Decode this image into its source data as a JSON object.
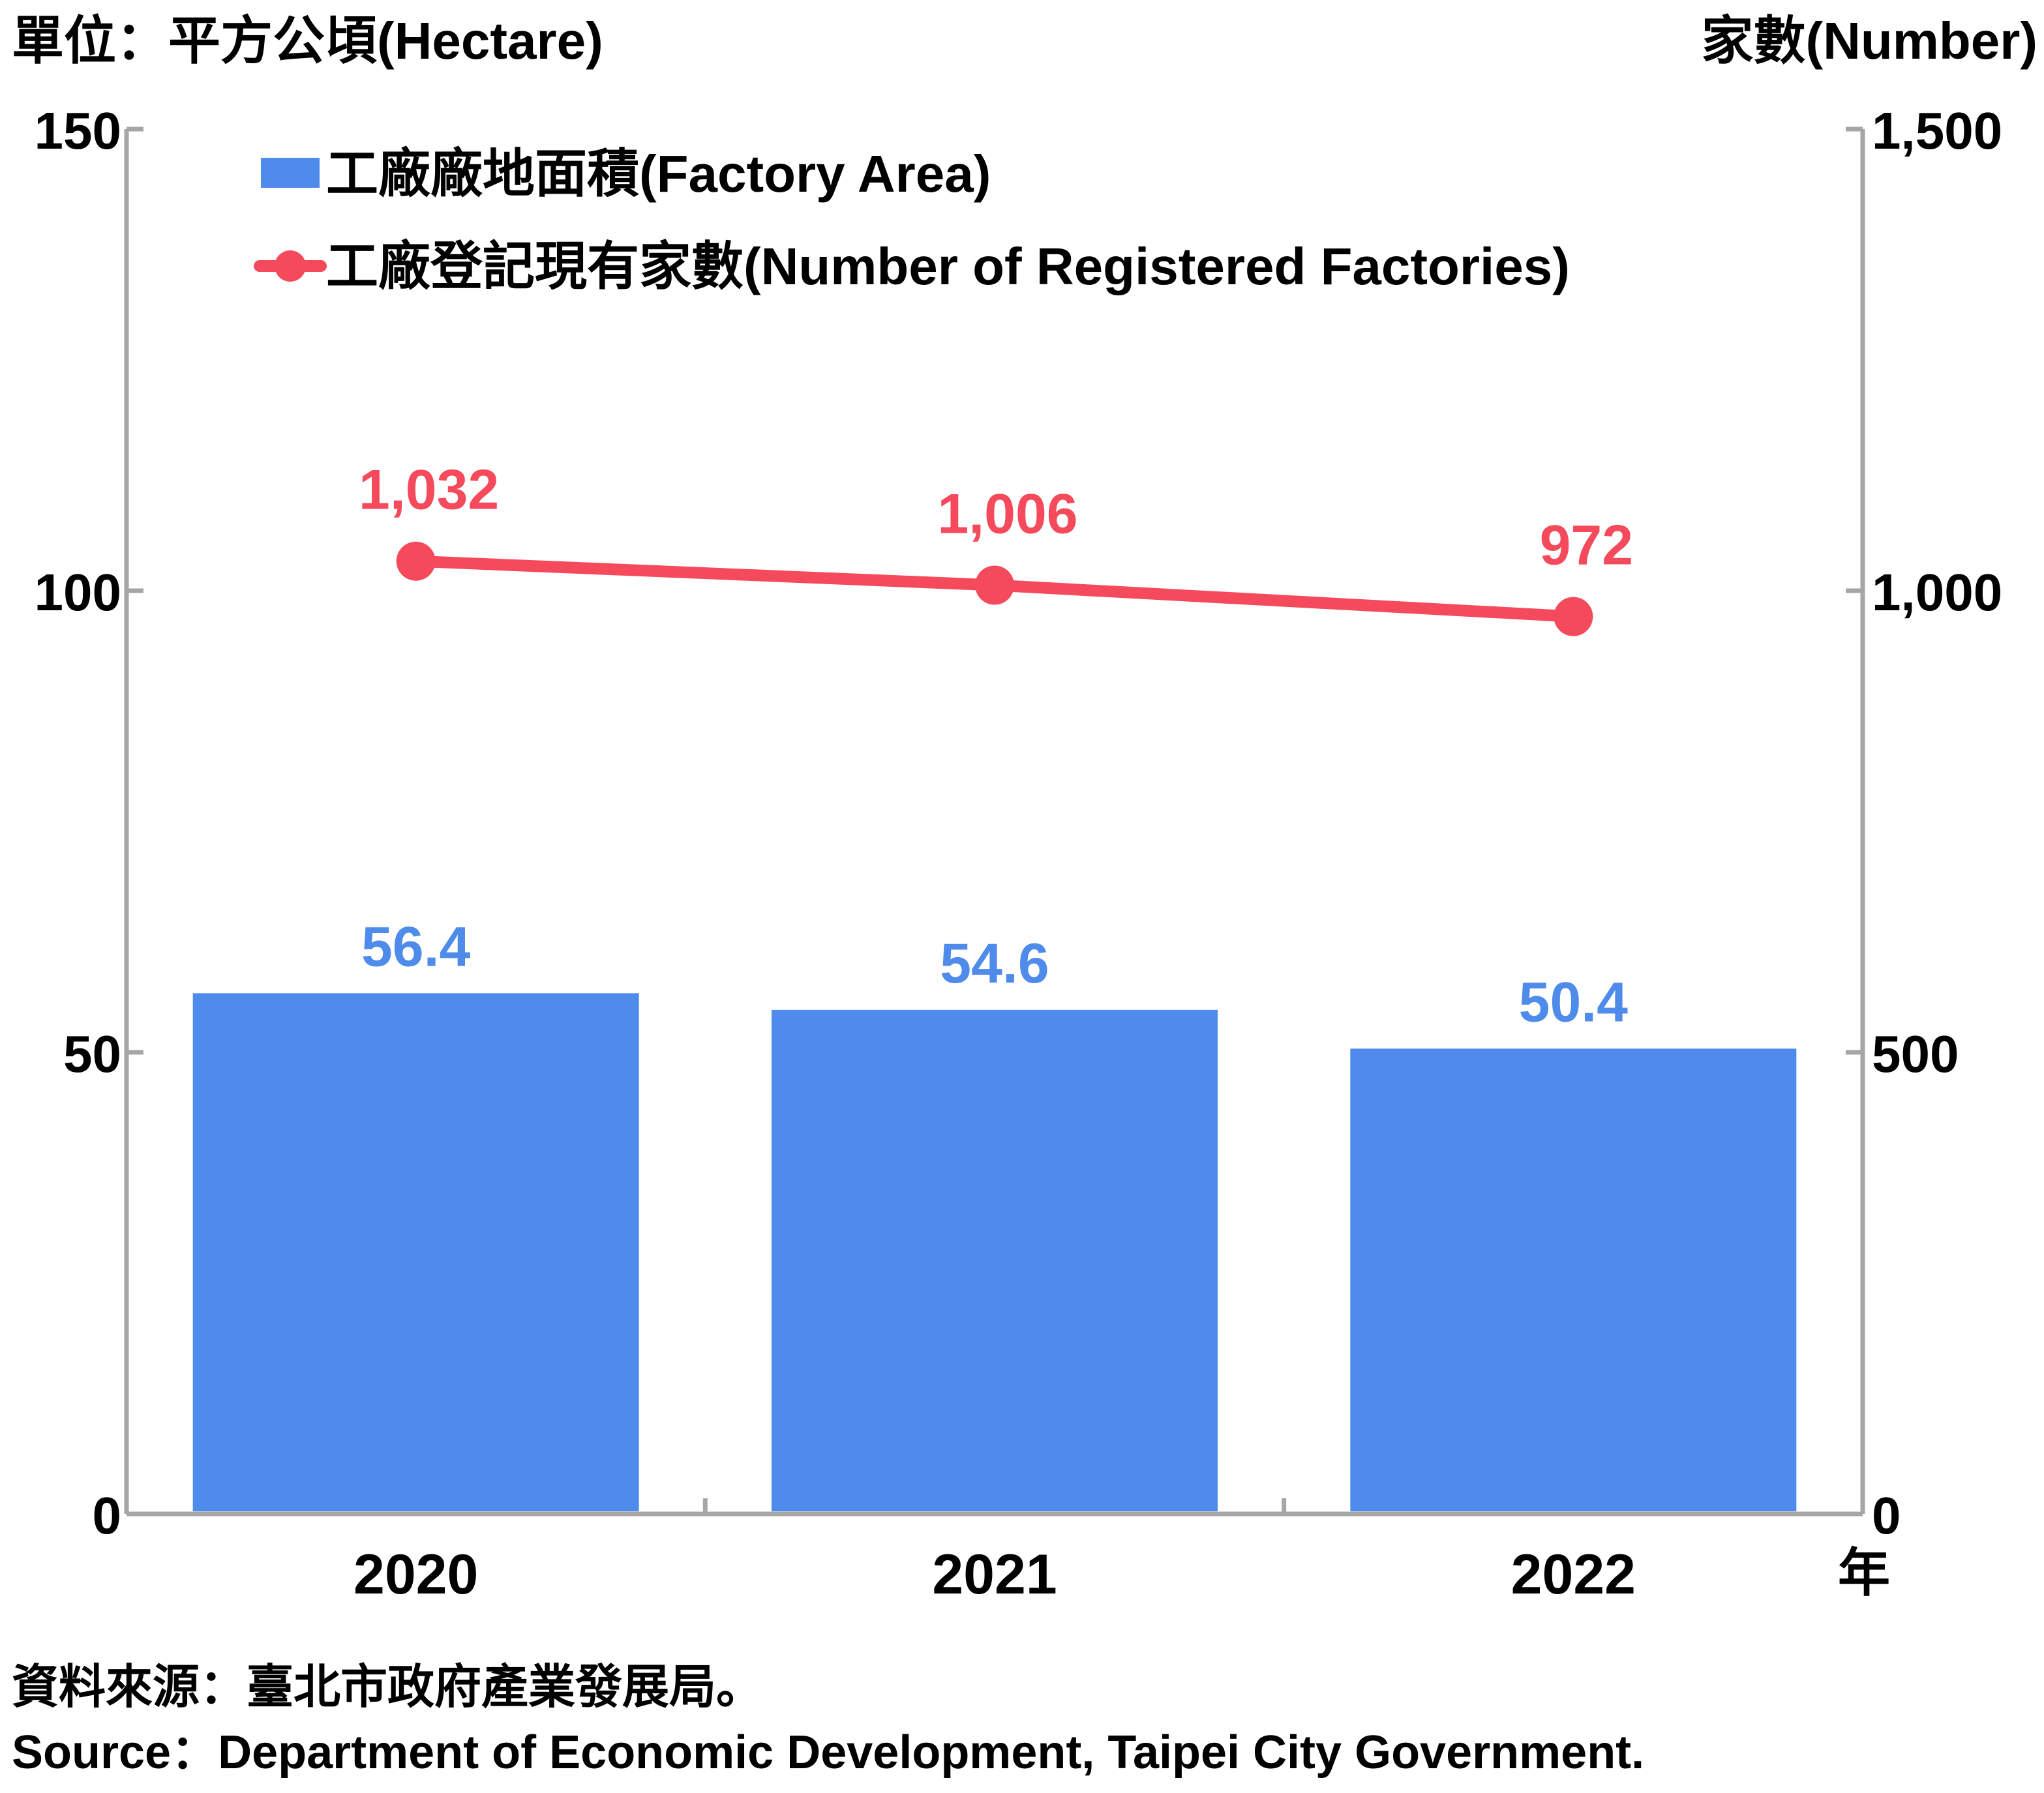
{
  "chart_data": {
    "type": "bar+line",
    "left_unit_label": "單位：平方公頃(Hectare)",
    "right_unit_label": "家數(Number)",
    "x_unit_label": "年",
    "categories": [
      "2020",
      "2021",
      "2022"
    ],
    "left_axis": {
      "range": [
        0,
        150
      ],
      "ticks": [
        "0",
        "50",
        "100",
        "150"
      ]
    },
    "right_axis": {
      "range": [
        0,
        1500
      ],
      "ticks": [
        "0",
        "500",
        "1,000",
        "1,500"
      ]
    },
    "series": [
      {
        "name": "工廠廠地面積(Factory Area)",
        "type": "bar",
        "axis": "left",
        "values": [
          56.4,
          54.6,
          50.4
        ],
        "labels": [
          "56.4",
          "54.6",
          "50.4"
        ],
        "color": "#4E8BEA"
      },
      {
        "name": "工廠登記現有家數(Number of Registered Factories)",
        "type": "line",
        "axis": "right",
        "values": [
          1032,
          1006,
          972
        ],
        "labels": [
          "1,032",
          "1,006",
          "972"
        ],
        "color": "#F54A5C"
      }
    ],
    "legend_position": "top-left",
    "grid": false
  },
  "source": {
    "zh": "資料來源：臺北市政府產業發展局。",
    "en": "Source：Department of Economic Development, Taipei City Government."
  },
  "colors": {
    "axis": "#a6a6a6",
    "text": "#000000"
  }
}
